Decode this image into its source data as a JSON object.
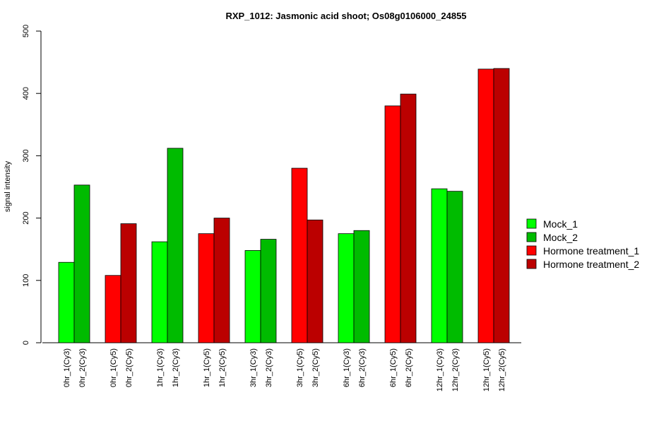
{
  "chart_data": {
    "type": "bar",
    "title": "RXP_1012: Jasmonic acid shoot; Os08g0106000_24855",
    "xlabel": "",
    "ylabel": "signal intensity",
    "ylim": [
      0,
      500
    ],
    "yticks": [
      0,
      100,
      200,
      300,
      400,
      500
    ],
    "grid": false,
    "legend_position": "right",
    "series": [
      {
        "name": "Mock_1",
        "color": "#00FF00"
      },
      {
        "name": "Mock_2",
        "color": "#00BB00"
      },
      {
        "name": "Hormone treatment_1",
        "color": "#FF0000"
      },
      {
        "name": "Hormone treatment_2",
        "color": "#BB0000"
      }
    ],
    "groups": [
      {
        "bars": [
          {
            "label": "0hr_1(Cy3)",
            "value": 129,
            "series": 0
          },
          {
            "label": "0hr_2(Cy3)",
            "value": 253,
            "series": 1
          }
        ]
      },
      {
        "bars": [
          {
            "label": "0hr_1(Cy5)",
            "value": 108,
            "series": 2
          },
          {
            "label": "0hr_2(Cy5)",
            "value": 191,
            "series": 3
          }
        ]
      },
      {
        "bars": [
          {
            "label": "1hr_1(Cy3)",
            "value": 162,
            "series": 0
          },
          {
            "label": "1hr_2(Cy3)",
            "value": 312,
            "series": 1
          }
        ]
      },
      {
        "bars": [
          {
            "label": "1hr_1(Cy5)",
            "value": 175,
            "series": 2
          },
          {
            "label": "1hr_2(Cy5)",
            "value": 200,
            "series": 3
          }
        ]
      },
      {
        "bars": [
          {
            "label": "3hr_1(Cy3)",
            "value": 148,
            "series": 0
          },
          {
            "label": "3hr_2(Cy3)",
            "value": 166,
            "series": 1
          }
        ]
      },
      {
        "bars": [
          {
            "label": "3hr_1(Cy5)",
            "value": 280,
            "series": 2
          },
          {
            "label": "3hr_2(Cy5)",
            "value": 197,
            "series": 3
          }
        ]
      },
      {
        "bars": [
          {
            "label": "6hr_1(Cy3)",
            "value": 175,
            "series": 0
          },
          {
            "label": "6hr_2(Cy3)",
            "value": 180,
            "series": 1
          }
        ]
      },
      {
        "bars": [
          {
            "label": "6hr_1(Cy5)",
            "value": 380,
            "series": 2
          },
          {
            "label": "6hr_2(Cy5)",
            "value": 399,
            "series": 3
          }
        ]
      },
      {
        "bars": [
          {
            "label": "12hr_1(Cy3)",
            "value": 247,
            "series": 0
          },
          {
            "label": "12hr_2(Cy3)",
            "value": 243,
            "series": 1
          }
        ]
      },
      {
        "bars": [
          {
            "label": "12hr_1(Cy5)",
            "value": 439,
            "series": 2
          },
          {
            "label": "12hr_2(Cy5)",
            "value": 440,
            "series": 3
          }
        ]
      }
    ]
  }
}
